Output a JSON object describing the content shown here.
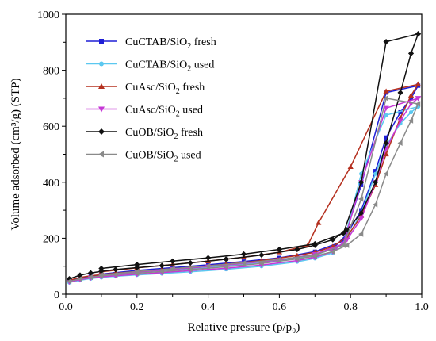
{
  "chart_data": {
    "type": "line",
    "title": "",
    "xlabel": "Relative pressure (p/p₀)",
    "ylabel": "Volume adsorbed (cm³/g) (STP)",
    "xlim": [
      0.0,
      1.0
    ],
    "ylim": [
      0,
      1000
    ],
    "x_ticks": [
      0.0,
      0.2,
      0.4,
      0.6,
      0.8,
      1.0
    ],
    "x_tick_labels": [
      "0.0",
      "0.2",
      "0.4",
      "0.6",
      "0.8",
      "1.0"
    ],
    "y_ticks": [
      0,
      200,
      400,
      600,
      800,
      1000
    ],
    "y_tick_labels": [
      "0",
      "200",
      "400",
      "600",
      "800",
      "1000"
    ],
    "grid": false,
    "legend_position": "top-left",
    "series": [
      {
        "name": "CuCTAB/SiO₂ fresh",
        "legend_main": "CuCTAB/SiO",
        "legend_sub": "2",
        "legend_rest": " fresh",
        "color": "#1f1fd6",
        "marker": "square",
        "adsorption": [
          [
            0.01,
            48
          ],
          [
            0.04,
            58
          ],
          [
            0.07,
            64
          ],
          [
            0.1,
            68
          ],
          [
            0.14,
            72
          ],
          [
            0.2,
            77
          ],
          [
            0.27,
            83
          ],
          [
            0.35,
            90
          ],
          [
            0.45,
            100
          ],
          [
            0.55,
            112
          ],
          [
            0.65,
            128
          ],
          [
            0.7,
            140
          ],
          [
            0.75,
            162
          ],
          [
            0.79,
            215
          ],
          [
            0.83,
            300
          ],
          [
            0.87,
            440
          ],
          [
            0.9,
            560
          ],
          [
            0.94,
            650
          ],
          [
            0.97,
            700
          ],
          [
            0.99,
            745
          ]
        ],
        "desorption": [
          [
            0.99,
            745
          ],
          [
            0.9,
            720
          ],
          [
            0.83,
            390
          ],
          [
            0.78,
            190
          ],
          [
            0.7,
            152
          ],
          [
            0.6,
            130
          ],
          [
            0.5,
            117
          ],
          [
            0.4,
            105
          ],
          [
            0.3,
            95
          ],
          [
            0.2,
            85
          ],
          [
            0.1,
            72
          ]
        ]
      },
      {
        "name": "CuCTAB/SiO₂ used",
        "legend_main": "CuCTAB/SiO",
        "legend_sub": "2",
        "legend_rest": " used",
        "color": "#5bc8f0",
        "marker": "circle",
        "adsorption": [
          [
            0.01,
            42
          ],
          [
            0.04,
            50
          ],
          [
            0.07,
            56
          ],
          [
            0.1,
            60
          ],
          [
            0.14,
            64
          ],
          [
            0.2,
            69
          ],
          [
            0.27,
            74
          ],
          [
            0.35,
            80
          ],
          [
            0.45,
            89
          ],
          [
            0.55,
            100
          ],
          [
            0.65,
            116
          ],
          [
            0.7,
            128
          ],
          [
            0.75,
            148
          ],
          [
            0.79,
            200
          ],
          [
            0.83,
            290
          ],
          [
            0.87,
            430
          ],
          [
            0.9,
            530
          ],
          [
            0.94,
            610
          ],
          [
            0.97,
            650
          ],
          [
            0.99,
            670
          ]
        ],
        "desorption": [
          [
            0.99,
            670
          ],
          [
            0.9,
            640
          ],
          [
            0.83,
            430
          ],
          [
            0.78,
            180
          ],
          [
            0.7,
            138
          ],
          [
            0.6,
            118
          ],
          [
            0.5,
            106
          ],
          [
            0.4,
            95
          ],
          [
            0.3,
            85
          ],
          [
            0.2,
            76
          ],
          [
            0.1,
            64
          ]
        ]
      },
      {
        "name": "CuAsc/SiO₂ fresh",
        "legend_main": "CuAsc/SiO",
        "legend_sub": "2",
        "legend_rest": " fresh",
        "color": "#b5301f",
        "marker": "triangle-up",
        "adsorption": [
          [
            0.01,
            50
          ],
          [
            0.04,
            60
          ],
          [
            0.07,
            66
          ],
          [
            0.1,
            70
          ],
          [
            0.14,
            75
          ],
          [
            0.2,
            81
          ],
          [
            0.27,
            88
          ],
          [
            0.35,
            96
          ],
          [
            0.45,
            107
          ],
          [
            0.55,
            120
          ],
          [
            0.65,
            138
          ],
          [
            0.7,
            150
          ],
          [
            0.75,
            170
          ],
          [
            0.79,
            205
          ],
          [
            0.83,
            280
          ],
          [
            0.87,
            390
          ],
          [
            0.9,
            500
          ],
          [
            0.94,
            630
          ],
          [
            0.97,
            710
          ],
          [
            0.99,
            750
          ]
        ],
        "desorption": [
          [
            0.99,
            750
          ],
          [
            0.9,
            725
          ],
          [
            0.8,
            455
          ],
          [
            0.71,
            255
          ],
          [
            0.68,
            175
          ],
          [
            0.6,
            150
          ],
          [
            0.5,
            132
          ],
          [
            0.4,
            118
          ],
          [
            0.3,
            106
          ],
          [
            0.2,
            94
          ],
          [
            0.1,
            80
          ]
        ]
      },
      {
        "name": "CuAsc/SiO₂ used",
        "legend_main": "CuAsc/SiO",
        "legend_sub": "2",
        "legend_rest": " used",
        "color": "#c637d6",
        "marker": "triangle-down",
        "adsorption": [
          [
            0.01,
            44
          ],
          [
            0.04,
            52
          ],
          [
            0.07,
            58
          ],
          [
            0.1,
            62
          ],
          [
            0.14,
            66
          ],
          [
            0.2,
            71
          ],
          [
            0.27,
            77
          ],
          [
            0.35,
            84
          ],
          [
            0.45,
            93
          ],
          [
            0.55,
            104
          ],
          [
            0.65,
            120
          ],
          [
            0.7,
            132
          ],
          [
            0.75,
            152
          ],
          [
            0.79,
            195
          ],
          [
            0.83,
            270
          ],
          [
            0.87,
            400
          ],
          [
            0.9,
            520
          ],
          [
            0.94,
            620
          ],
          [
            0.97,
            680
          ],
          [
            0.99,
            700
          ]
        ],
        "desorption": [
          [
            0.99,
            700
          ],
          [
            0.9,
            665
          ],
          [
            0.83,
            400
          ],
          [
            0.78,
            180
          ],
          [
            0.7,
            143
          ],
          [
            0.6,
            122
          ],
          [
            0.5,
            110
          ],
          [
            0.4,
            99
          ],
          [
            0.3,
            89
          ],
          [
            0.2,
            79
          ],
          [
            0.1,
            67
          ]
        ]
      },
      {
        "name": "CuOB/SiO₂ fresh",
        "legend_main": "CuOB/SiO",
        "legend_sub": "2",
        "legend_rest": " fresh",
        "color": "#111111",
        "marker": "diamond",
        "adsorption": [
          [
            0.01,
            55
          ],
          [
            0.04,
            68
          ],
          [
            0.07,
            76
          ],
          [
            0.1,
            82
          ],
          [
            0.14,
            88
          ],
          [
            0.2,
            95
          ],
          [
            0.27,
            102
          ],
          [
            0.35,
            112
          ],
          [
            0.45,
            125
          ],
          [
            0.55,
            140
          ],
          [
            0.65,
            160
          ],
          [
            0.7,
            175
          ],
          [
            0.75,
            195
          ],
          [
            0.79,
            230
          ],
          [
            0.83,
            290
          ],
          [
            0.87,
            400
          ],
          [
            0.9,
            540
          ],
          [
            0.94,
            720
          ],
          [
            0.97,
            860
          ],
          [
            0.99,
            930
          ]
        ],
        "desorption": [
          [
            0.99,
            930
          ],
          [
            0.9,
            902
          ],
          [
            0.83,
            400
          ],
          [
            0.78,
            218
          ],
          [
            0.7,
            180
          ],
          [
            0.6,
            160
          ],
          [
            0.5,
            143
          ],
          [
            0.4,
            130
          ],
          [
            0.3,
            118
          ],
          [
            0.2,
            106
          ],
          [
            0.1,
            92
          ]
        ]
      },
      {
        "name": "CuOB/SiO₂ used",
        "legend_main": "CuOB/SiO",
        "legend_sub": "2",
        "legend_rest": " used",
        "color": "#8a8a8a",
        "marker": "triangle-left",
        "adsorption": [
          [
            0.01,
            46
          ],
          [
            0.04,
            55
          ],
          [
            0.07,
            61
          ],
          [
            0.1,
            66
          ],
          [
            0.14,
            70
          ],
          [
            0.2,
            75
          ],
          [
            0.27,
            81
          ],
          [
            0.35,
            88
          ],
          [
            0.45,
            98
          ],
          [
            0.55,
            110
          ],
          [
            0.65,
            126
          ],
          [
            0.7,
            136
          ],
          [
            0.75,
            152
          ],
          [
            0.79,
            175
          ],
          [
            0.83,
            215
          ],
          [
            0.87,
            320
          ],
          [
            0.9,
            430
          ],
          [
            0.94,
            540
          ],
          [
            0.97,
            620
          ],
          [
            0.99,
            680
          ]
        ],
        "desorption": [
          [
            0.99,
            680
          ],
          [
            0.9,
            700
          ],
          [
            0.83,
            340
          ],
          [
            0.78,
            175
          ],
          [
            0.7,
            140
          ],
          [
            0.6,
            124
          ],
          [
            0.5,
            112
          ],
          [
            0.4,
            101
          ],
          [
            0.3,
            91
          ],
          [
            0.2,
            81
          ],
          [
            0.1,
            69
          ]
        ]
      }
    ]
  }
}
